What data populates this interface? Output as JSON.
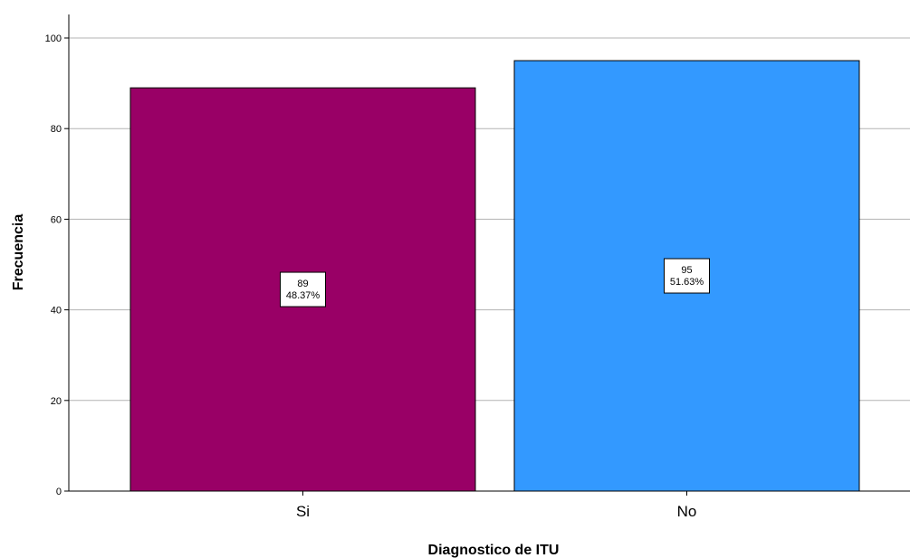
{
  "chart_data": {
    "type": "bar",
    "title": "",
    "xlabel": "Diagnostico de ITU",
    "ylabel": "Frecuencia",
    "categories": [
      "Si",
      "No"
    ],
    "values": [
      89,
      95
    ],
    "percent_labels": [
      "48.37%",
      "51.63%"
    ],
    "bar_colors": [
      "#990066",
      "#3399ff"
    ],
    "ylim": [
      0,
      105
    ],
    "yticks": [
      0,
      20,
      40,
      60,
      80,
      100
    ],
    "grid": "horizontal",
    "legend": "none"
  }
}
